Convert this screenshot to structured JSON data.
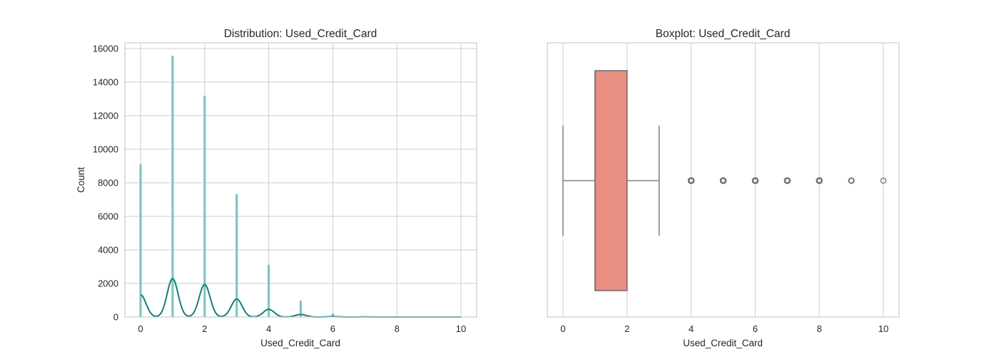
{
  "figure": {
    "background": "#ffffff",
    "grid_color": "#cccccc",
    "text_color": "#262626"
  },
  "chart_data": [
    {
      "type": "histogram",
      "title": "Distribution: Used_Credit_Card",
      "xlabel": "Used_Credit_Card",
      "ylabel": "Count",
      "xlim": [
        -0.5,
        10.5
      ],
      "ylim": [
        0,
        16400
      ],
      "xticks": [
        0,
        2,
        4,
        6,
        8,
        10
      ],
      "yticks": [
        0,
        2000,
        4000,
        6000,
        8000,
        10000,
        12000,
        14000,
        16000
      ],
      "grid": true,
      "bar_color": "#7fc4c0",
      "kde_color": "#0f8080",
      "categories": [
        0,
        1,
        2,
        3,
        4,
        5,
        6,
        7,
        8,
        9,
        10
      ],
      "values": [
        9100,
        15570,
        13190,
        7320,
        3110,
        980,
        210,
        40,
        10,
        5,
        2
      ],
      "kde": {
        "x": [
          0,
          1,
          2,
          3,
          4,
          5,
          6,
          7,
          8,
          9,
          10
        ],
        "peaks": [
          1330,
          2290,
          1940,
          1070,
          460,
          150,
          30,
          8,
          2,
          1,
          0
        ]
      }
    },
    {
      "type": "boxplot",
      "title": "Boxplot: Used_Credit_Card",
      "xlabel": "Used_Credit_Card",
      "ylabel": "",
      "xlim": [
        -0.5,
        10.5
      ],
      "xticks": [
        0,
        2,
        4,
        6,
        8,
        10
      ],
      "grid": true,
      "box_color": "#e88e82",
      "line_color": "#6b6b6b",
      "whisker_low": 0,
      "q1": 1,
      "median": 1,
      "q3": 2,
      "whisker_high": 3,
      "outliers": [
        4,
        5,
        6,
        7,
        8,
        9,
        10
      ]
    }
  ]
}
